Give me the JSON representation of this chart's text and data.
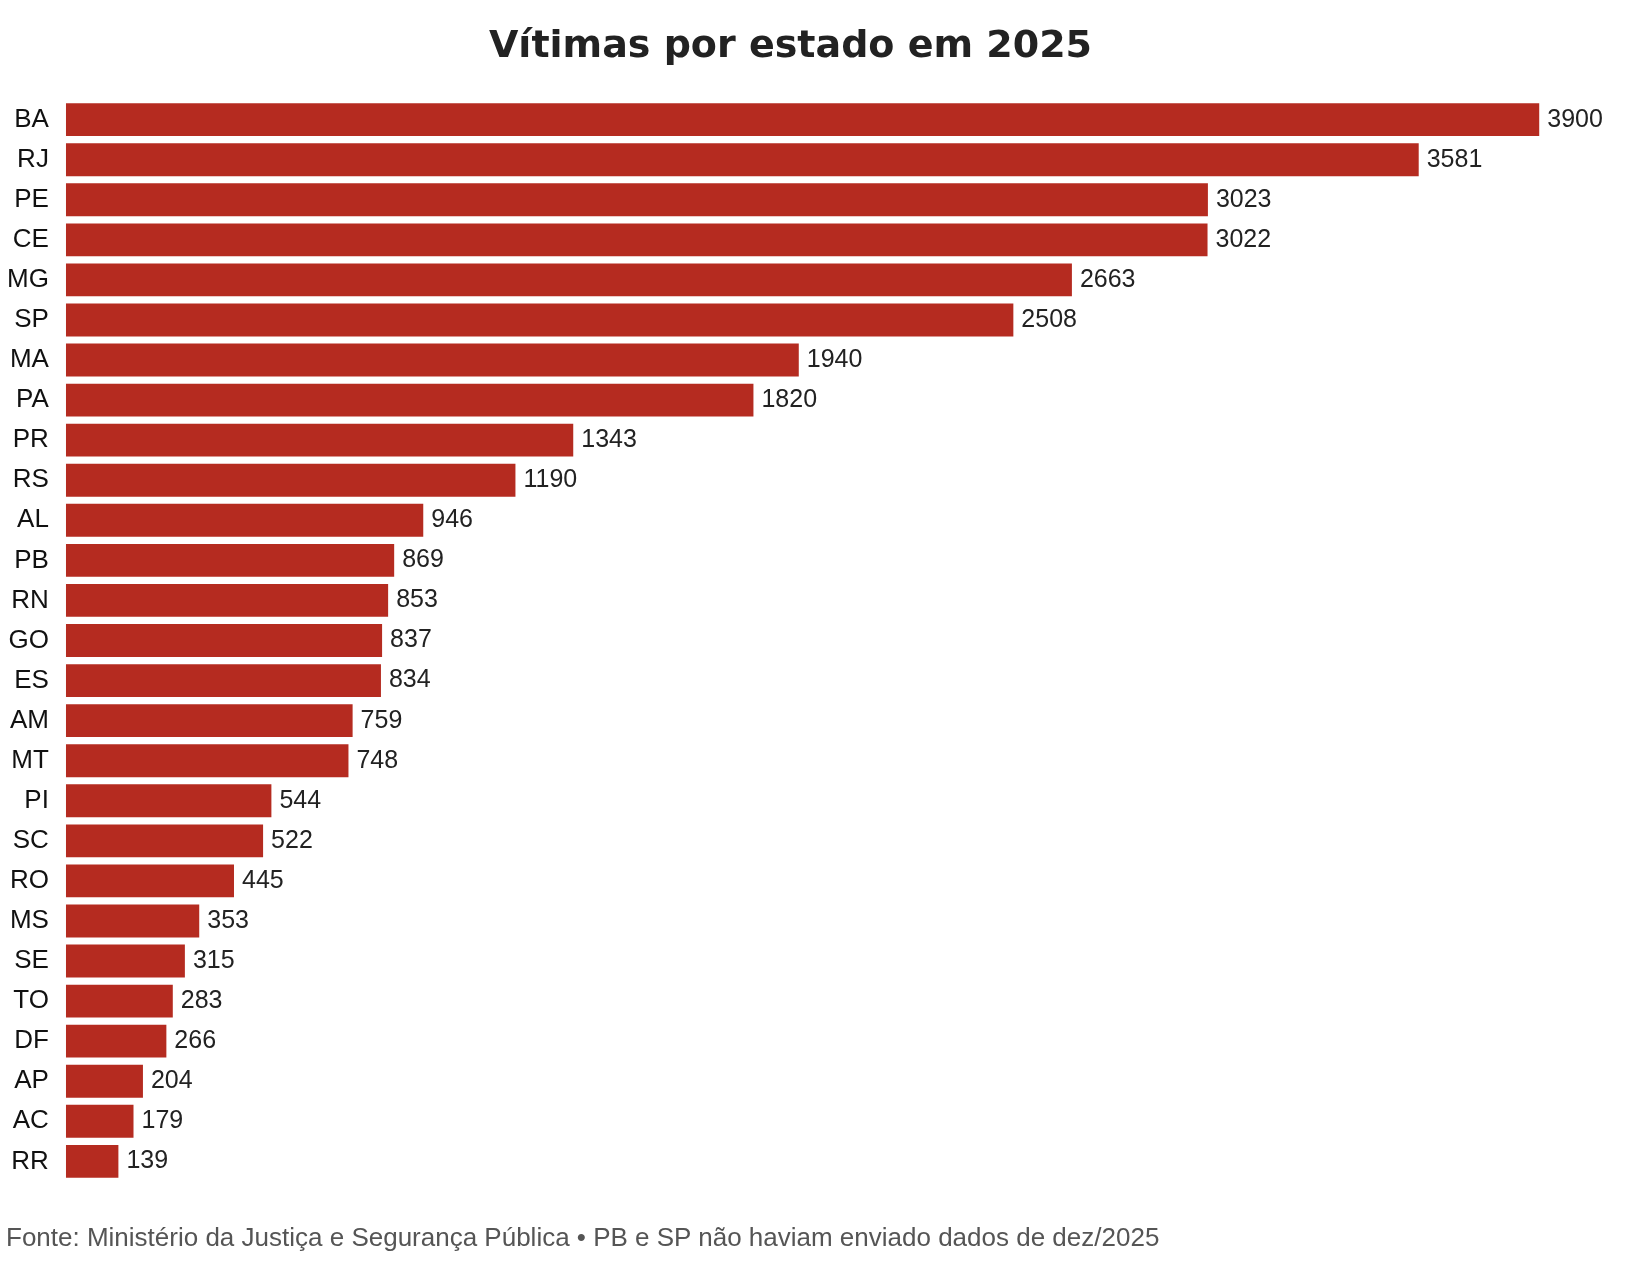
{
  "chart_data": {
    "type": "bar",
    "orientation": "horizontal",
    "title": "Vítimas por estado em 2025",
    "categories": [
      "BA",
      "RJ",
      "PE",
      "CE",
      "MG",
      "SP",
      "MA",
      "PA",
      "PR",
      "RS",
      "AL",
      "PB",
      "RN",
      "GO",
      "ES",
      "AM",
      "MT",
      "PI",
      "SC",
      "RO",
      "MS",
      "SE",
      "TO",
      "DF",
      "AP",
      "AC",
      "RR"
    ],
    "values": [
      3900,
      3581,
      3023,
      3022,
      2663,
      2508,
      1940,
      1820,
      1343,
      1190,
      946,
      869,
      853,
      837,
      834,
      759,
      748,
      544,
      522,
      445,
      353,
      315,
      283,
      266,
      204,
      179,
      139
    ],
    "color": "#b52b20",
    "data_labels": true,
    "tick_labels": "y",
    "grid": false,
    "legend": false,
    "annotations": [
      "Fonte: Ministério da Justiça e Segurança Pública • PB e SP não haviam enviado dados de dez/2025"
    ]
  }
}
